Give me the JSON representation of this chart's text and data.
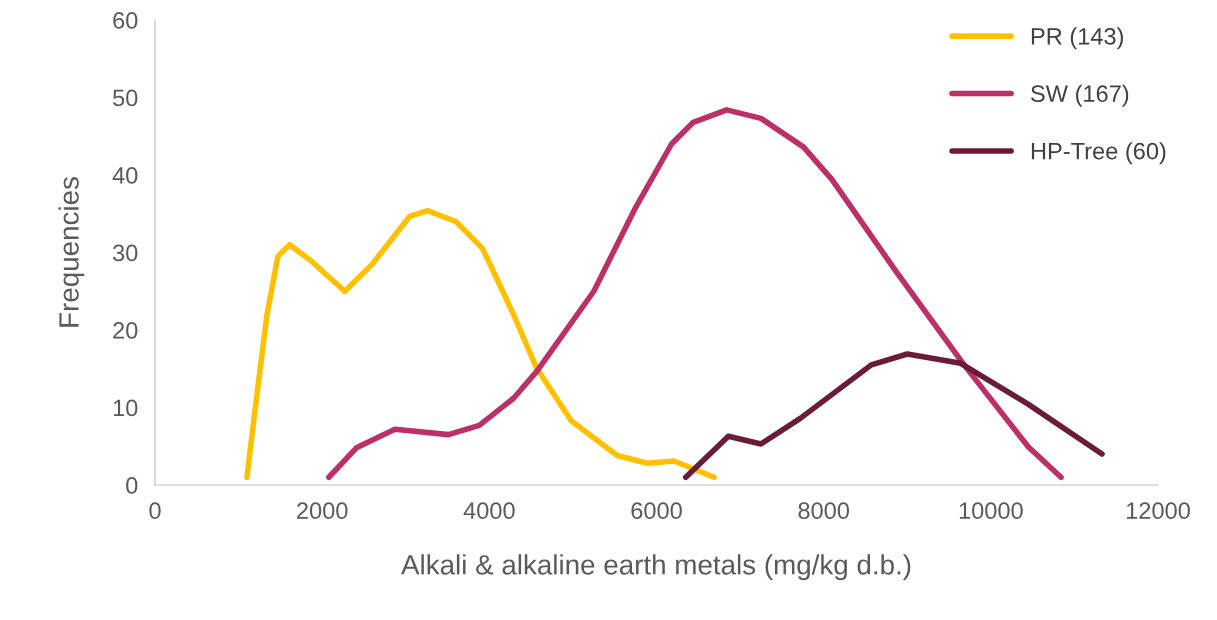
{
  "chart_data": {
    "type": "line",
    "xlabel": "Alkali & alkaline earth metals (mg/kg d.b.)",
    "ylabel": "Frequencies",
    "xlim": [
      0,
      12000
    ],
    "xticks": [
      0,
      2000,
      4000,
      6000,
      8000,
      10000,
      12000
    ],
    "ylim": [
      0,
      60
    ],
    "yticks": [
      0,
      10,
      20,
      30,
      40,
      50,
      60
    ],
    "grid": false,
    "legend": "top right",
    "marker": "none",
    "line_style": "solid",
    "series": [
      {
        "name": "PR (143)",
        "color": "#ffc000",
        "x": [
          1100,
          1200,
          1340,
          1470,
          1610,
          1860,
          2270,
          2600,
          3050,
          3260,
          3600,
          3920,
          4290,
          4560,
          4980,
          5530,
          5890,
          6210,
          6690
        ],
        "values": [
          1,
          10,
          22,
          29.5,
          31,
          29,
          25,
          28.5,
          34.7,
          35.4,
          34,
          30.5,
          22,
          15.2,
          8.3,
          3.8,
          2.8,
          3.1,
          1
        ]
      },
      {
        "name": "SW (167)",
        "color": "#bc2f68",
        "x": [
          2080,
          2410,
          2870,
          3510,
          3880,
          4290,
          4570,
          5250,
          5750,
          6180,
          6440,
          6840,
          7250,
          7760,
          8100,
          8870,
          9680,
          10450,
          10840
        ],
        "values": [
          1,
          4.8,
          7.2,
          6.5,
          7.7,
          11.2,
          14.7,
          25,
          35.8,
          44,
          46.8,
          48.4,
          47.3,
          43.6,
          39.4,
          27.5,
          15.5,
          4.9,
          1
        ]
      },
      {
        "name": "HP-Tree (60)",
        "color": "#6b1a3a",
        "x": [
          6350,
          6860,
          7250,
          7720,
          8570,
          9000,
          9640,
          10450,
          11330
        ],
        "values": [
          1,
          6.3,
          5.3,
          8.6,
          15.5,
          16.9,
          15.7,
          10.4,
          4
        ]
      }
    ]
  }
}
